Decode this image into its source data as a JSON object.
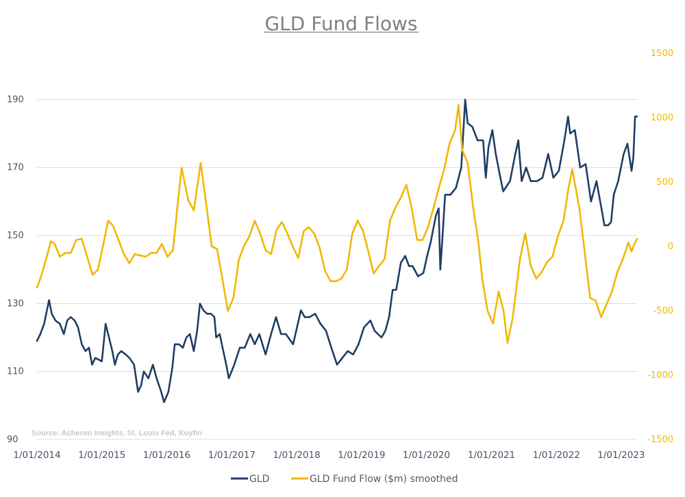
{
  "chart_data": {
    "type": "line",
    "title": "GLD Fund Flows",
    "source": "Source: Acheron Insights, St. Louis Fed, Koyfin",
    "x_tick_labels": [
      "1/01/2014",
      "1/01/2015",
      "1/01/2016",
      "1/01/2017",
      "1/01/2018",
      "1/01/2019",
      "1/01/2020",
      "1/01/2021",
      "1/01/2022",
      "1/01/2023"
    ],
    "xlim": [
      "2014-01-01",
      "2023-03-31"
    ],
    "y_left": {
      "ticks": [
        90,
        110,
        130,
        150,
        170,
        190
      ],
      "ylim": [
        90,
        193.5
      ]
    },
    "y_right": {
      "ticks": [
        -1500,
        -1000,
        -500,
        0,
        500,
        1000,
        1500
      ],
      "ylim": [
        -1500,
        1500
      ]
    },
    "gridlines": true,
    "legend_position": "bottom-center",
    "series": [
      {
        "name": "GLD",
        "color": "#1f3d64",
        "axis": "left",
        "points": [
          [
            "2014-01-01",
            119
          ],
          [
            "2014-01-20",
            121
          ],
          [
            "2014-02-10",
            124
          ],
          [
            "2014-03-10",
            131
          ],
          [
            "2014-03-25",
            127
          ],
          [
            "2014-04-15",
            125
          ],
          [
            "2014-05-10",
            124
          ],
          [
            "2014-06-01",
            121
          ],
          [
            "2014-06-20",
            125
          ],
          [
            "2014-07-10",
            126
          ],
          [
            "2014-08-01",
            125
          ],
          [
            "2014-08-20",
            123
          ],
          [
            "2014-09-10",
            118
          ],
          [
            "2014-10-01",
            116
          ],
          [
            "2014-10-20",
            117
          ],
          [
            "2014-11-07",
            112
          ],
          [
            "2014-11-25",
            114
          ],
          [
            "2015-01-01",
            113
          ],
          [
            "2015-01-22",
            124
          ],
          [
            "2015-02-10",
            120
          ],
          [
            "2015-03-01",
            116
          ],
          [
            "2015-03-15",
            112
          ],
          [
            "2015-04-01",
            115
          ],
          [
            "2015-04-20",
            116
          ],
          [
            "2015-05-15",
            115
          ],
          [
            "2015-06-05",
            114
          ],
          [
            "2015-07-01",
            112
          ],
          [
            "2015-07-24",
            104
          ],
          [
            "2015-08-10",
            106
          ],
          [
            "2015-08-25",
            110
          ],
          [
            "2015-09-20",
            108
          ],
          [
            "2015-10-15",
            112
          ],
          [
            "2015-11-05",
            108
          ],
          [
            "2015-12-01",
            104
          ],
          [
            "2015-12-17",
            101
          ],
          [
            "2016-01-10",
            104
          ],
          [
            "2016-02-01",
            111
          ],
          [
            "2016-02-15",
            118
          ],
          [
            "2016-03-10",
            118
          ],
          [
            "2016-04-01",
            117
          ],
          [
            "2016-04-20",
            120
          ],
          [
            "2016-05-10",
            121
          ],
          [
            "2016-06-01",
            116
          ],
          [
            "2016-06-20",
            122
          ],
          [
            "2016-07-06",
            130
          ],
          [
            "2016-07-25",
            128
          ],
          [
            "2016-08-15",
            127
          ],
          [
            "2016-09-05",
            127
          ],
          [
            "2016-09-25",
            126
          ],
          [
            "2016-10-05",
            120
          ],
          [
            "2016-10-25",
            121
          ],
          [
            "2016-11-10",
            117
          ],
          [
            "2016-12-01",
            112
          ],
          [
            "2016-12-15",
            108
          ],
          [
            "2017-01-15",
            112
          ],
          [
            "2017-02-15",
            117
          ],
          [
            "2017-03-15",
            117
          ],
          [
            "2017-04-15",
            121
          ],
          [
            "2017-05-10",
            118
          ],
          [
            "2017-06-05",
            121
          ],
          [
            "2017-07-10",
            115
          ],
          [
            "2017-08-10",
            121
          ],
          [
            "2017-09-07",
            126
          ],
          [
            "2017-10-05",
            121
          ],
          [
            "2017-11-01",
            121
          ],
          [
            "2017-12-12",
            118
          ],
          [
            "2018-01-25",
            128
          ],
          [
            "2018-02-15",
            126
          ],
          [
            "2018-03-15",
            126
          ],
          [
            "2018-04-15",
            127
          ],
          [
            "2018-05-15",
            124
          ],
          [
            "2018-06-15",
            122
          ],
          [
            "2018-07-15",
            117
          ],
          [
            "2018-08-16",
            112
          ],
          [
            "2018-09-15",
            114
          ],
          [
            "2018-10-15",
            116
          ],
          [
            "2018-11-15",
            115
          ],
          [
            "2018-12-15",
            118
          ],
          [
            "2019-01-15",
            123
          ],
          [
            "2019-02-20",
            125
          ],
          [
            "2019-03-15",
            122
          ],
          [
            "2019-04-23",
            120
          ],
          [
            "2019-05-15",
            122
          ],
          [
            "2019-06-05",
            126
          ],
          [
            "2019-06-25",
            134
          ],
          [
            "2019-07-15",
            134
          ],
          [
            "2019-08-10",
            142
          ],
          [
            "2019-09-04",
            144
          ],
          [
            "2019-09-25",
            141
          ],
          [
            "2019-10-15",
            141
          ],
          [
            "2019-11-15",
            138
          ],
          [
            "2019-12-15",
            139
          ],
          [
            "2020-01-05",
            144
          ],
          [
            "2020-01-25",
            148
          ],
          [
            "2020-02-24",
            156
          ],
          [
            "2020-03-10",
            158
          ],
          [
            "2020-03-19",
            140
          ],
          [
            "2020-04-01",
            150
          ],
          [
            "2020-04-15",
            162
          ],
          [
            "2020-05-15",
            162
          ],
          [
            "2020-06-15",
            164
          ],
          [
            "2020-07-15",
            170
          ],
          [
            "2020-08-06",
            190
          ],
          [
            "2020-08-20",
            183
          ],
          [
            "2020-09-15",
            182
          ],
          [
            "2020-10-15",
            178
          ],
          [
            "2020-11-15",
            178
          ],
          [
            "2020-11-30",
            167
          ],
          [
            "2020-12-15",
            176
          ],
          [
            "2021-01-06",
            181
          ],
          [
            "2021-01-25",
            174
          ],
          [
            "2021-02-20",
            167
          ],
          [
            "2021-03-08",
            163
          ],
          [
            "2021-04-15",
            166
          ],
          [
            "2021-05-15",
            174
          ],
          [
            "2021-06-01",
            178
          ],
          [
            "2021-06-20",
            166
          ],
          [
            "2021-07-15",
            170
          ],
          [
            "2021-08-10",
            166
          ],
          [
            "2021-09-15",
            166
          ],
          [
            "2021-10-15",
            167
          ],
          [
            "2021-11-16",
            174
          ],
          [
            "2021-12-15",
            167
          ],
          [
            "2022-01-15",
            169
          ],
          [
            "2022-02-15",
            178
          ],
          [
            "2022-03-08",
            185
          ],
          [
            "2022-03-20",
            180
          ],
          [
            "2022-04-15",
            181
          ],
          [
            "2022-05-15",
            170
          ],
          [
            "2022-06-15",
            171
          ],
          [
            "2022-07-15",
            160
          ],
          [
            "2022-08-15",
            166
          ],
          [
            "2022-09-15",
            157
          ],
          [
            "2022-09-28",
            153
          ],
          [
            "2022-10-20",
            153
          ],
          [
            "2022-11-05",
            154
          ],
          [
            "2022-11-20",
            162
          ],
          [
            "2022-12-15",
            166
          ],
          [
            "2023-01-15",
            174
          ],
          [
            "2023-02-05",
            177
          ],
          [
            "2023-02-28",
            169
          ],
          [
            "2023-03-10",
            173
          ],
          [
            "2023-03-20",
            185
          ],
          [
            "2023-03-31",
            185
          ]
        ]
      },
      {
        "name": "GLD Fund Flow ($m) smoothed",
        "color": "#f0b800",
        "axis": "right",
        "points": [
          [
            "2014-01-01",
            -320
          ],
          [
            "2014-01-25",
            -230
          ],
          [
            "2014-02-25",
            -80
          ],
          [
            "2014-03-20",
            40
          ],
          [
            "2014-04-10",
            20
          ],
          [
            "2014-05-10",
            -80
          ],
          [
            "2014-06-10",
            -50
          ],
          [
            "2014-07-10",
            -50
          ],
          [
            "2014-08-10",
            50
          ],
          [
            "2014-09-10",
            60
          ],
          [
            "2014-10-10",
            -80
          ],
          [
            "2014-11-10",
            -220
          ],
          [
            "2014-12-10",
            -180
          ],
          [
            "2015-01-10",
            20
          ],
          [
            "2015-02-05",
            200
          ],
          [
            "2015-03-05",
            160
          ],
          [
            "2015-04-05",
            50
          ],
          [
            "2015-05-05",
            -60
          ],
          [
            "2015-06-05",
            -130
          ],
          [
            "2015-07-05",
            -60
          ],
          [
            "2015-08-05",
            -70
          ],
          [
            "2015-09-05",
            -80
          ],
          [
            "2015-10-05",
            -50
          ],
          [
            "2015-11-05",
            -50
          ],
          [
            "2015-12-05",
            20
          ],
          [
            "2016-01-05",
            -80
          ],
          [
            "2016-02-05",
            -30
          ],
          [
            "2016-03-05",
            360
          ],
          [
            "2016-03-25",
            610
          ],
          [
            "2016-05-01",
            360
          ],
          [
            "2016-06-01",
            280
          ],
          [
            "2016-07-10",
            650
          ],
          [
            "2016-08-10",
            330
          ],
          [
            "2016-09-10",
            0
          ],
          [
            "2016-10-10",
            -20
          ],
          [
            "2016-11-10",
            -260
          ],
          [
            "2016-12-10",
            -500
          ],
          [
            "2017-01-10",
            -400
          ],
          [
            "2017-02-10",
            -100
          ],
          [
            "2017-03-10",
            0
          ],
          [
            "2017-04-10",
            80
          ],
          [
            "2017-05-10",
            200
          ],
          [
            "2017-06-10",
            100
          ],
          [
            "2017-07-10",
            -30
          ],
          [
            "2017-08-10",
            -60
          ],
          [
            "2017-09-10",
            130
          ],
          [
            "2017-10-10",
            190
          ],
          [
            "2017-11-10",
            100
          ],
          [
            "2017-12-10",
            0
          ],
          [
            "2018-01-10",
            -90
          ],
          [
            "2018-02-10",
            120
          ],
          [
            "2018-03-10",
            150
          ],
          [
            "2018-04-10",
            100
          ],
          [
            "2018-05-10",
            -10
          ],
          [
            "2018-06-10",
            -190
          ],
          [
            "2018-07-10",
            -270
          ],
          [
            "2018-08-10",
            -270
          ],
          [
            "2018-09-10",
            -250
          ],
          [
            "2018-10-10",
            -180
          ],
          [
            "2018-11-10",
            100
          ],
          [
            "2018-12-10",
            200
          ],
          [
            "2019-01-10",
            120
          ],
          [
            "2019-02-10",
            -50
          ],
          [
            "2019-03-10",
            -210
          ],
          [
            "2019-04-10",
            -150
          ],
          [
            "2019-05-10",
            -100
          ],
          [
            "2019-06-10",
            200
          ],
          [
            "2019-07-10",
            300
          ],
          [
            "2019-08-10",
            380
          ],
          [
            "2019-09-10",
            480
          ],
          [
            "2019-10-10",
            300
          ],
          [
            "2019-11-10",
            50
          ],
          [
            "2019-12-10",
            50
          ],
          [
            "2020-01-10",
            150
          ],
          [
            "2020-02-10",
            300
          ],
          [
            "2020-03-10",
            450
          ],
          [
            "2020-04-10",
            600
          ],
          [
            "2020-05-10",
            800
          ],
          [
            "2020-06-10",
            900
          ],
          [
            "2020-06-30",
            1100
          ],
          [
            "2020-07-20",
            750
          ],
          [
            "2020-08-20",
            650
          ],
          [
            "2020-09-20",
            300
          ],
          [
            "2020-10-20",
            30
          ],
          [
            "2020-11-10",
            -250
          ],
          [
            "2020-12-10",
            -500
          ],
          [
            "2021-01-10",
            -600
          ],
          [
            "2021-02-10",
            -350
          ],
          [
            "2021-03-10",
            -500
          ],
          [
            "2021-04-01",
            -750
          ],
          [
            "2021-05-01",
            -550
          ],
          [
            "2021-06-10",
            -100
          ],
          [
            "2021-07-10",
            100
          ],
          [
            "2021-08-10",
            -150
          ],
          [
            "2021-09-10",
            -250
          ],
          [
            "2021-10-10",
            -200
          ],
          [
            "2021-11-10",
            -120
          ],
          [
            "2021-12-10",
            -80
          ],
          [
            "2022-01-10",
            80
          ],
          [
            "2022-02-10",
            200
          ],
          [
            "2022-03-10",
            450
          ],
          [
            "2022-04-01",
            600
          ],
          [
            "2022-05-10",
            300
          ],
          [
            "2022-06-10",
            -50
          ],
          [
            "2022-07-10",
            -400
          ],
          [
            "2022-08-10",
            -420
          ],
          [
            "2022-09-10",
            -550
          ],
          [
            "2022-10-10",
            -450
          ],
          [
            "2022-11-10",
            -350
          ],
          [
            "2022-12-10",
            -200
          ],
          [
            "2023-01-10",
            -100
          ],
          [
            "2023-02-10",
            30
          ],
          [
            "2023-02-28",
            -40
          ],
          [
            "2023-03-10",
            0
          ],
          [
            "2023-03-31",
            60
          ]
        ]
      }
    ]
  }
}
